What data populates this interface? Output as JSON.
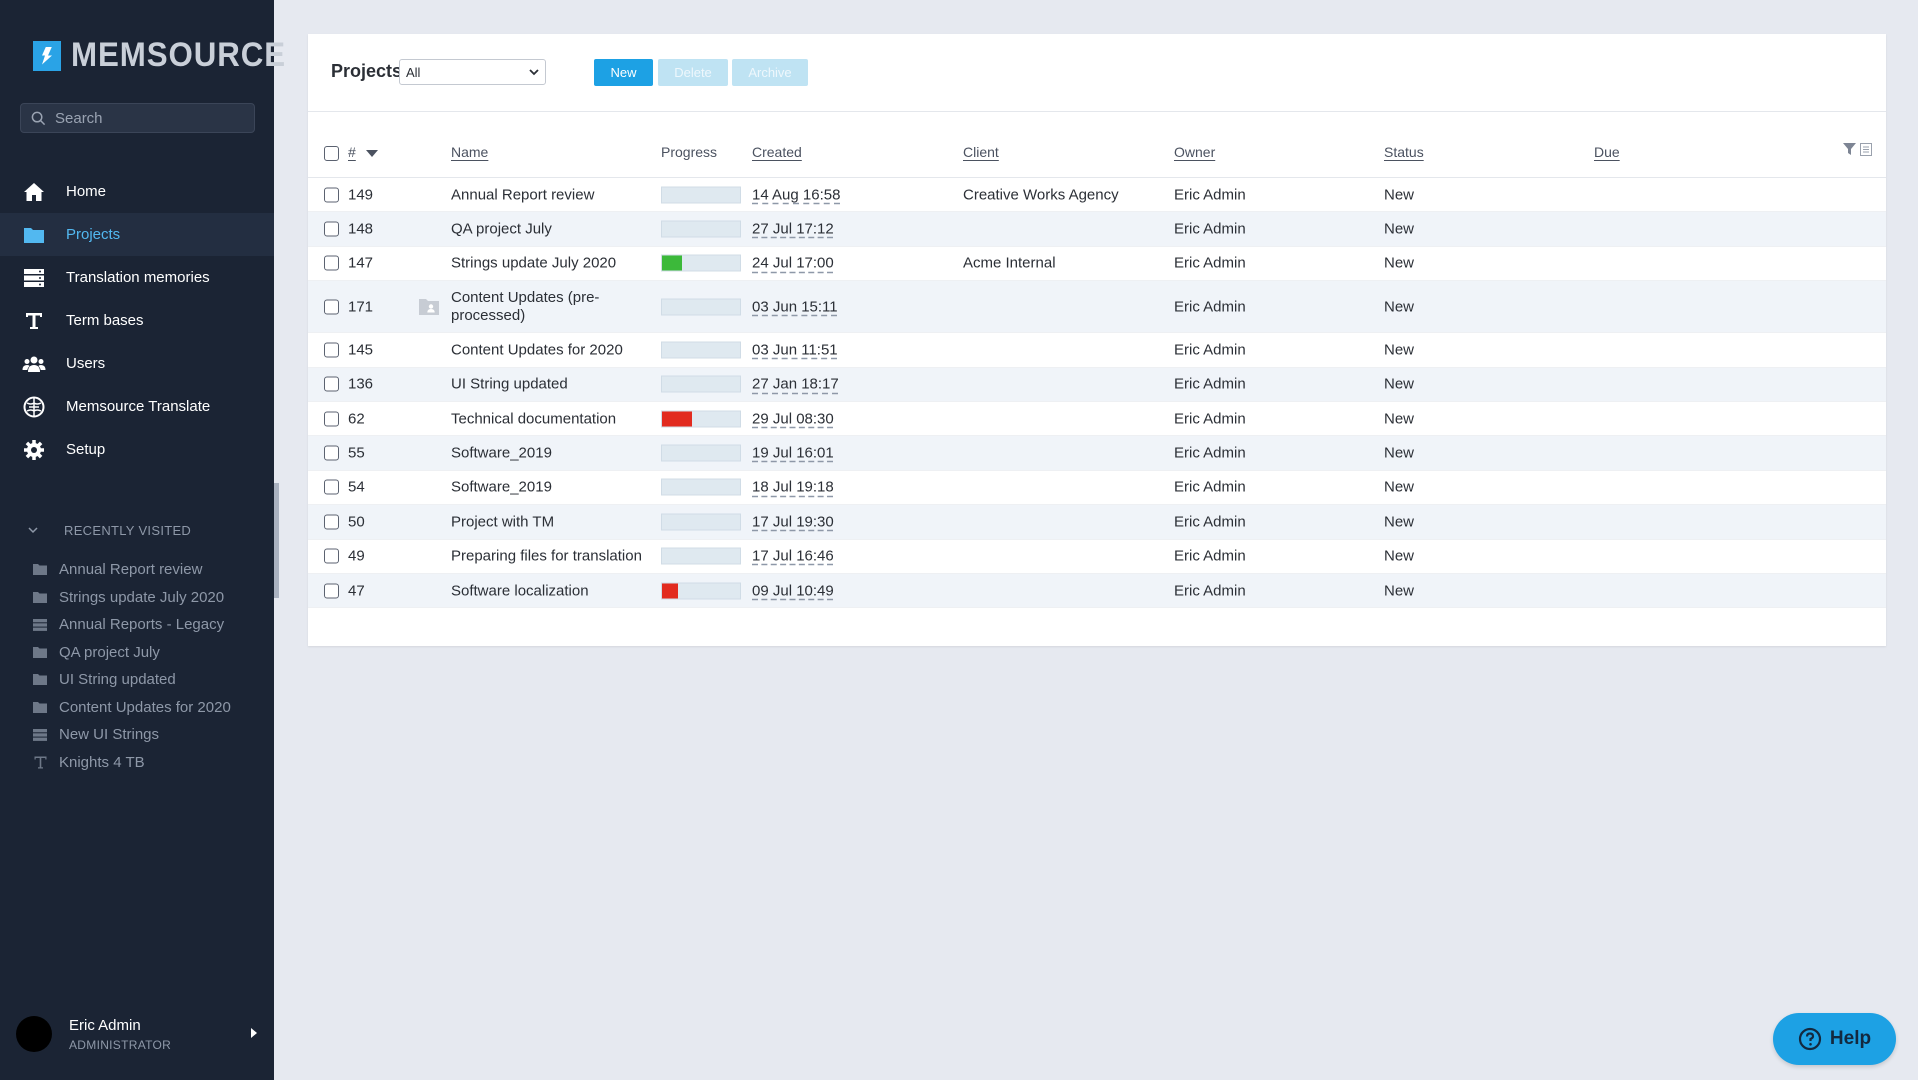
{
  "app": {
    "logo_text": "MEMSOURCE"
  },
  "colors": {
    "accent": "#1da1e4",
    "sidebar_bg": "#1b2434",
    "progress_green": "#3cb93a",
    "progress_red": "#e22b1f"
  },
  "sidebar": {
    "search_placeholder": "Search",
    "nav": [
      {
        "label": "Home",
        "icon": "home-icon"
      },
      {
        "label": "Projects",
        "icon": "folder-icon",
        "active": true
      },
      {
        "label": "Translation memories",
        "icon": "database-icon"
      },
      {
        "label": "Term bases",
        "icon": "text-t-icon"
      },
      {
        "label": "Users",
        "icon": "users-icon"
      },
      {
        "label": "Memsource Translate",
        "icon": "brain-icon"
      },
      {
        "label": "Setup",
        "icon": "gear-icon"
      }
    ],
    "recent_header": "RECENTLY VISITED",
    "recent": [
      {
        "label": "Annual Report review",
        "icon": "folder-icon"
      },
      {
        "label": "Strings update July 2020",
        "icon": "folder-icon"
      },
      {
        "label": "Annual Reports - Legacy",
        "icon": "database-icon"
      },
      {
        "label": "QA project July",
        "icon": "folder-icon"
      },
      {
        "label": "UI String updated",
        "icon": "folder-icon"
      },
      {
        "label": "Content Updates for 2020",
        "icon": "folder-icon"
      },
      {
        "label": "New UI Strings",
        "icon": "database-icon"
      },
      {
        "label": "Knights 4 TB",
        "icon": "text-t-icon"
      }
    ],
    "user": {
      "name": "Eric Admin",
      "role": "ADMINISTRATOR"
    }
  },
  "toolbar": {
    "title": "Projects",
    "filter_value": "All",
    "new_label": "New",
    "delete_label": "Delete",
    "archive_label": "Archive"
  },
  "table": {
    "headers": {
      "id": "#",
      "name": "Name",
      "progress": "Progress",
      "created": "Created",
      "client": "Client",
      "owner": "Owner",
      "status": "Status",
      "due": "Due"
    },
    "rows": [
      {
        "id": "149",
        "name": "Annual Report review",
        "progress": 0,
        "progress_color": "",
        "created": "14 Aug 16:58",
        "client": "Creative Works Agency",
        "owner": "Eric Admin",
        "status": "New"
      },
      {
        "id": "148",
        "name": "QA project July",
        "progress": 0,
        "progress_color": "",
        "created": "27 Jul 17:12",
        "client": "",
        "owner": "Eric Admin",
        "status": "New"
      },
      {
        "id": "147",
        "name": "Strings update July 2020",
        "progress": 0.25,
        "progress_color": "green",
        "created": "24 Jul 17:00",
        "client": "Acme Internal",
        "owner": "Eric Admin",
        "status": "New"
      },
      {
        "id": "171",
        "name": "Content Updates (pre-processed)",
        "name_line1": "Content Updates (pre-",
        "name_line2": "processed)",
        "progress": 0,
        "progress_color": "",
        "created": "03 Jun 15:11",
        "client": "",
        "owner": "Eric Admin",
        "status": "New",
        "shared": true
      },
      {
        "id": "145",
        "name": "Content Updates for 2020",
        "progress": 0,
        "progress_color": "",
        "created": "03 Jun 11:51",
        "client": "",
        "owner": "Eric Admin",
        "status": "New"
      },
      {
        "id": "136",
        "name": "UI String updated",
        "progress": 0,
        "progress_color": "",
        "created": "27 Jan 18:17",
        "client": "",
        "owner": "Eric Admin",
        "status": "New"
      },
      {
        "id": "62",
        "name": "Technical documentation",
        "progress": 0.38,
        "progress_color": "red",
        "created": "29 Jul 08:30",
        "client": "",
        "owner": "Eric Admin",
        "status": "New"
      },
      {
        "id": "55",
        "name": "Software_2019",
        "progress": 0,
        "progress_color": "",
        "created": "19 Jul 16:01",
        "client": "",
        "owner": "Eric Admin",
        "status": "New"
      },
      {
        "id": "54",
        "name": "Software_2019",
        "progress": 0,
        "progress_color": "",
        "created": "18 Jul 19:18",
        "client": "",
        "owner": "Eric Admin",
        "status": "New"
      },
      {
        "id": "50",
        "name": "Project with TM",
        "progress": 0,
        "progress_color": "",
        "created": "17 Jul 19:30",
        "client": "",
        "owner": "Eric Admin",
        "status": "New"
      },
      {
        "id": "49",
        "name": "Preparing files for translation",
        "progress": 0,
        "progress_color": "",
        "created": "17 Jul 16:46",
        "client": "",
        "owner": "Eric Admin",
        "status": "New"
      },
      {
        "id": "47",
        "name": "Software localization",
        "progress": 0.2,
        "progress_color": "red",
        "created": "09 Jul 10:49",
        "client": "",
        "owner": "Eric Admin",
        "status": "New"
      }
    ]
  },
  "help": {
    "label": "Help"
  }
}
